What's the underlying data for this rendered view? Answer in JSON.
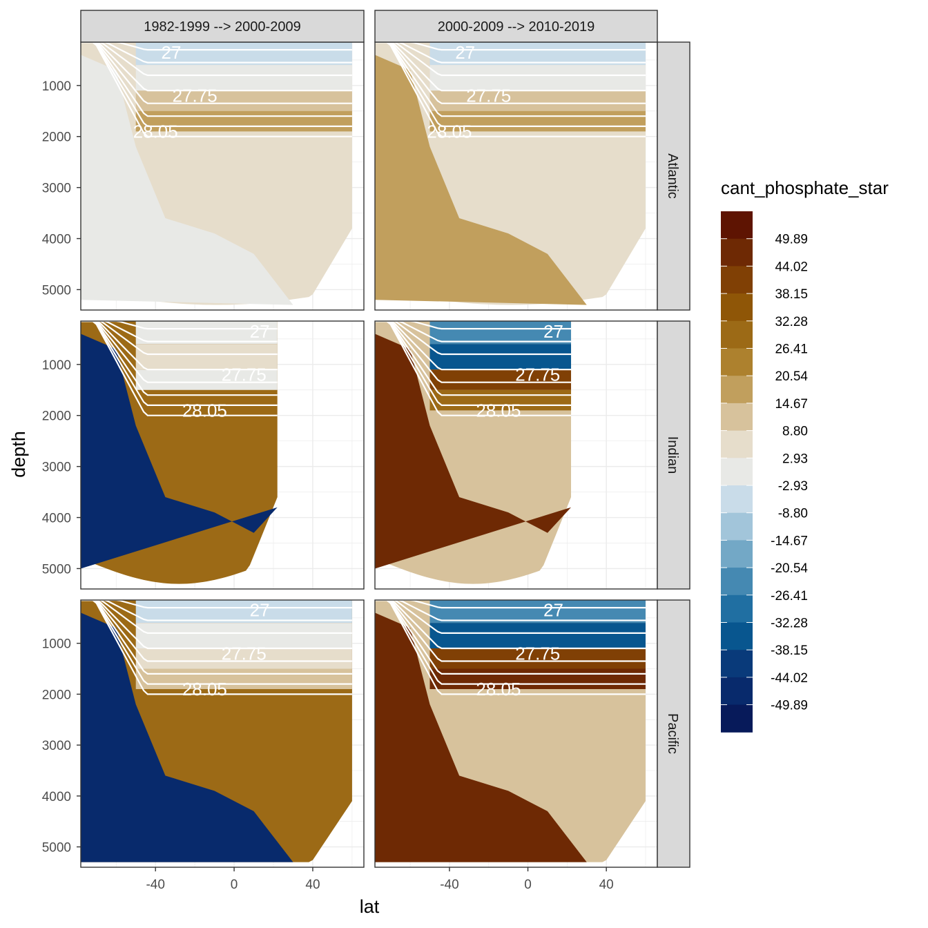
{
  "chart_data": {
    "type": "heatmap",
    "subtype": "faceted filled contour sections (depth vs latitude)",
    "xlabel": "lat",
    "ylabel": "depth",
    "x_ticks": [
      -40,
      0,
      40
    ],
    "x_tick_labels": [
      "-40",
      "0",
      "40"
    ],
    "y_ticks": [
      1000,
      2000,
      3000,
      4000,
      5000
    ],
    "y_tick_labels": [
      "1000",
      "2000",
      "3000",
      "4000",
      "5000"
    ],
    "y_reversed": true,
    "xlim": [
      -78,
      66
    ],
    "ylim": [
      5400,
      150
    ],
    "grid": true,
    "col_facets": [
      "1982-1999 --> 2000-2009",
      "2000-2009 --> 2010-2019"
    ],
    "row_facets": [
      "Atlantic",
      "Indian",
      "Pacific"
    ],
    "legend": {
      "title": "cant_phosphate_star",
      "position": "right",
      "labels": [
        "49.89",
        "44.02",
        "38.15",
        "32.28",
        "26.41",
        "20.54",
        "14.67",
        "8.80",
        "2.93",
        "-2.93",
        "-8.80",
        "-14.67",
        "-20.54",
        "-26.41",
        "-32.28",
        "-38.15",
        "-44.02",
        "-49.89"
      ],
      "colors": [
        "#5e1402",
        "#6e2904",
        "#804005",
        "#8f5607",
        "#9c6a16",
        "#ad812e",
        "#c19f5d",
        "#d7c29c",
        "#e6ddcb",
        "#e8e9e6",
        "#c9dce9",
        "#a2c5da",
        "#73a8c6",
        "#4589b2",
        "#206fa2",
        "#08568f",
        "#093a7a",
        "#082a6c",
        "#071a5a"
      ]
    },
    "contour_labels": [
      "27",
      "27.75",
      "28.05"
    ],
    "panels": [
      {
        "row": "Atlantic",
        "col": "1982-1999 --> 2000-2009",
        "deep_value": 2.93,
        "deep_left_value": 0,
        "surface_band_values": [
          -8.8,
          -2.93,
          8.8,
          14.67
        ],
        "bottom_depth": [
          5000,
          5300
        ]
      },
      {
        "row": "Atlantic",
        "col": "2000-2009 --> 2010-2019",
        "deep_value": 2.93,
        "deep_left_value": 14.67,
        "surface_band_values": [
          -8.8,
          -2.93,
          8.8,
          14.67
        ],
        "bottom_depth": [
          5000,
          5300
        ]
      },
      {
        "row": "Indian",
        "col": "1982-1999 --> 2000-2009",
        "deep_value": 26.41,
        "deep_left_value": -49.89,
        "surface_band_values": [
          -2.93,
          2.93,
          -2.93
        ],
        "bottom_depth": [
          4800,
          5300
        ]
      },
      {
        "row": "Indian",
        "col": "2000-2009 --> 2010-2019",
        "deep_value": 8.8,
        "deep_left_value": 44.02,
        "surface_band_values": [
          -26.41,
          -38.15,
          38.15,
          26.41
        ],
        "bottom_depth": [
          4800,
          5300
        ]
      },
      {
        "row": "Pacific",
        "col": "1982-1999 --> 2000-2009",
        "deep_value": 26.41,
        "deep_left_value": -49.89,
        "surface_band_values": [
          -8.8,
          -2.93,
          2.93,
          8.8
        ],
        "bottom_depth": [
          5300,
          5300
        ]
      },
      {
        "row": "Pacific",
        "col": "2000-2009 --> 2010-2019",
        "deep_value": 8.8,
        "deep_left_value": 44.02,
        "surface_band_values": [
          -26.41,
          -38.15,
          38.15,
          44.02
        ],
        "bottom_depth": [
          5300,
          5300
        ]
      }
    ]
  }
}
